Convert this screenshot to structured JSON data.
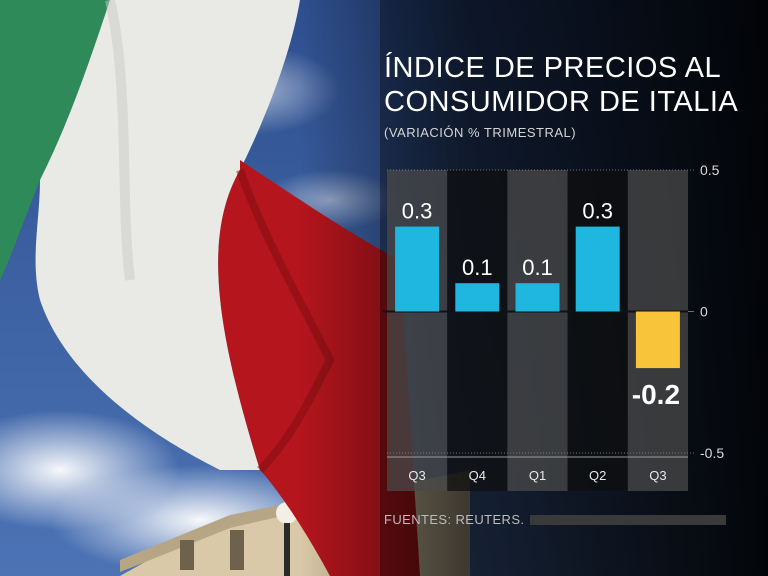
{
  "header": {
    "title_line1": "ÍNDICE DE PRECIOS AL",
    "title_line2": "CONSUMIDOR DE ITALIA",
    "subtitle": "(VARIACIÓN % TRIMESTRAL)"
  },
  "footer": {
    "source": "FUENTES: REUTERS."
  },
  "colors": {
    "positive": "#1fb7e0",
    "negative": "#f8c53a",
    "flag_green": "#2f8a5a",
    "flag_white": "#e9e9e6",
    "flag_red": "#b5151d",
    "sky": "#3a5fa0"
  },
  "chart_data": {
    "type": "bar",
    "categories": [
      "Q3",
      "Q4",
      "Q1",
      "Q2",
      "Q3"
    ],
    "values": [
      0.3,
      0.1,
      0.1,
      0.3,
      -0.2
    ],
    "value_labels": [
      "0.3",
      "0.1",
      "0.1",
      "0.3",
      "-0.2"
    ],
    "ylim": [
      -0.5,
      0.5
    ],
    "yticks": [
      0.5,
      0,
      -0.5
    ],
    "ytick_labels": [
      "0.5",
      "0",
      "-0.5"
    ],
    "highlight_index": 4
  }
}
